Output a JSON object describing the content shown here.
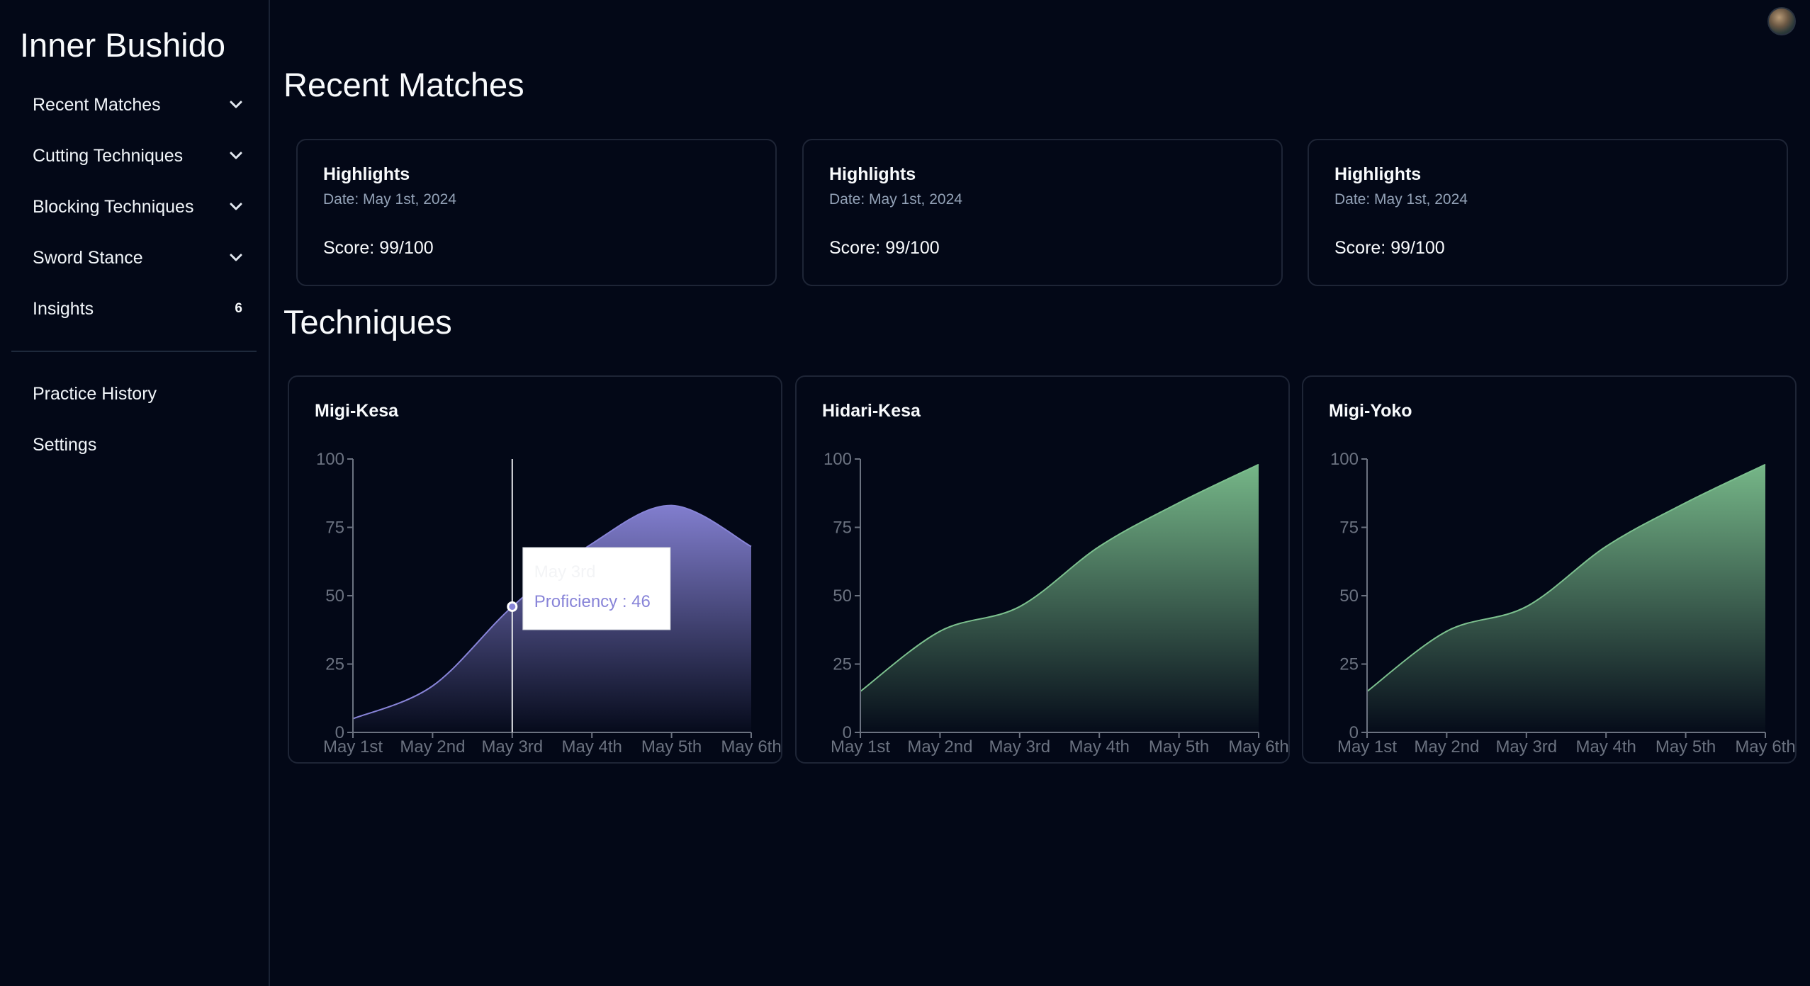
{
  "app": {
    "title": "Inner Bushido"
  },
  "sidebar": {
    "items": [
      {
        "label": "Recent Matches",
        "icon": "chevron-down-icon"
      },
      {
        "label": "Cutting Techniques",
        "icon": "chevron-down-icon"
      },
      {
        "label": "Blocking Techniques",
        "icon": "chevron-down-icon"
      },
      {
        "label": "Sword Stance",
        "icon": "chevron-down-icon"
      },
      {
        "label": "Insights",
        "badge": "6"
      }
    ],
    "secondary": [
      {
        "label": "Practice History"
      },
      {
        "label": "Settings"
      }
    ]
  },
  "main": {
    "recent_title": "Recent Matches",
    "techniques_title": "Techniques",
    "matches": [
      {
        "title": "Highlights",
        "date": "Date: May 1st, 2024",
        "score": "Score: 99/100"
      },
      {
        "title": "Highlights",
        "date": "Date: May 1st, 2024",
        "score": "Score: 99/100"
      },
      {
        "title": "Highlights",
        "date": "Date: May 1st, 2024",
        "score": "Score: 99/100"
      }
    ]
  },
  "colors": {
    "purple": "#8884d8",
    "green": "#7cc08e",
    "background": "#030817"
  },
  "chart_data": [
    {
      "type": "area",
      "title": "Migi-Kesa",
      "categories": [
        "May 1st",
        "May 2nd",
        "May 3rd",
        "May 4th",
        "May 5th",
        "May 6th"
      ],
      "series": [
        {
          "values": [
            5,
            17,
            46,
            69,
            83,
            68
          ]
        }
      ],
      "ylim": [
        0,
        100
      ],
      "yticks": [
        "0",
        "25",
        "50",
        "75",
        "100"
      ],
      "color": "#8884d8",
      "tooltip": {
        "label": "May 3rd",
        "text": "Proficiency : 46",
        "index": 2
      }
    },
    {
      "type": "area",
      "title": "Hidari-Kesa",
      "categories": [
        "May 1st",
        "May 2nd",
        "May 3rd",
        "May 4th",
        "May 5th",
        "May 6th"
      ],
      "series": [
        {
          "values": [
            15,
            37,
            46,
            68,
            84,
            98
          ]
        }
      ],
      "ylim": [
        0,
        100
      ],
      "yticks": [
        "0",
        "25",
        "50",
        "75",
        "100"
      ],
      "color": "#7cc08e"
    },
    {
      "type": "area",
      "title": "Migi-Yoko",
      "categories": [
        "May 1st",
        "May 2nd",
        "May 3rd",
        "May 4th",
        "May 5th",
        "May 6th"
      ],
      "series": [
        {
          "values": [
            15,
            37,
            46,
            68,
            84,
            98
          ]
        }
      ],
      "ylim": [
        0,
        100
      ],
      "yticks": [
        "0",
        "25",
        "50",
        "75",
        "100"
      ],
      "color": "#7cc08e"
    }
  ]
}
